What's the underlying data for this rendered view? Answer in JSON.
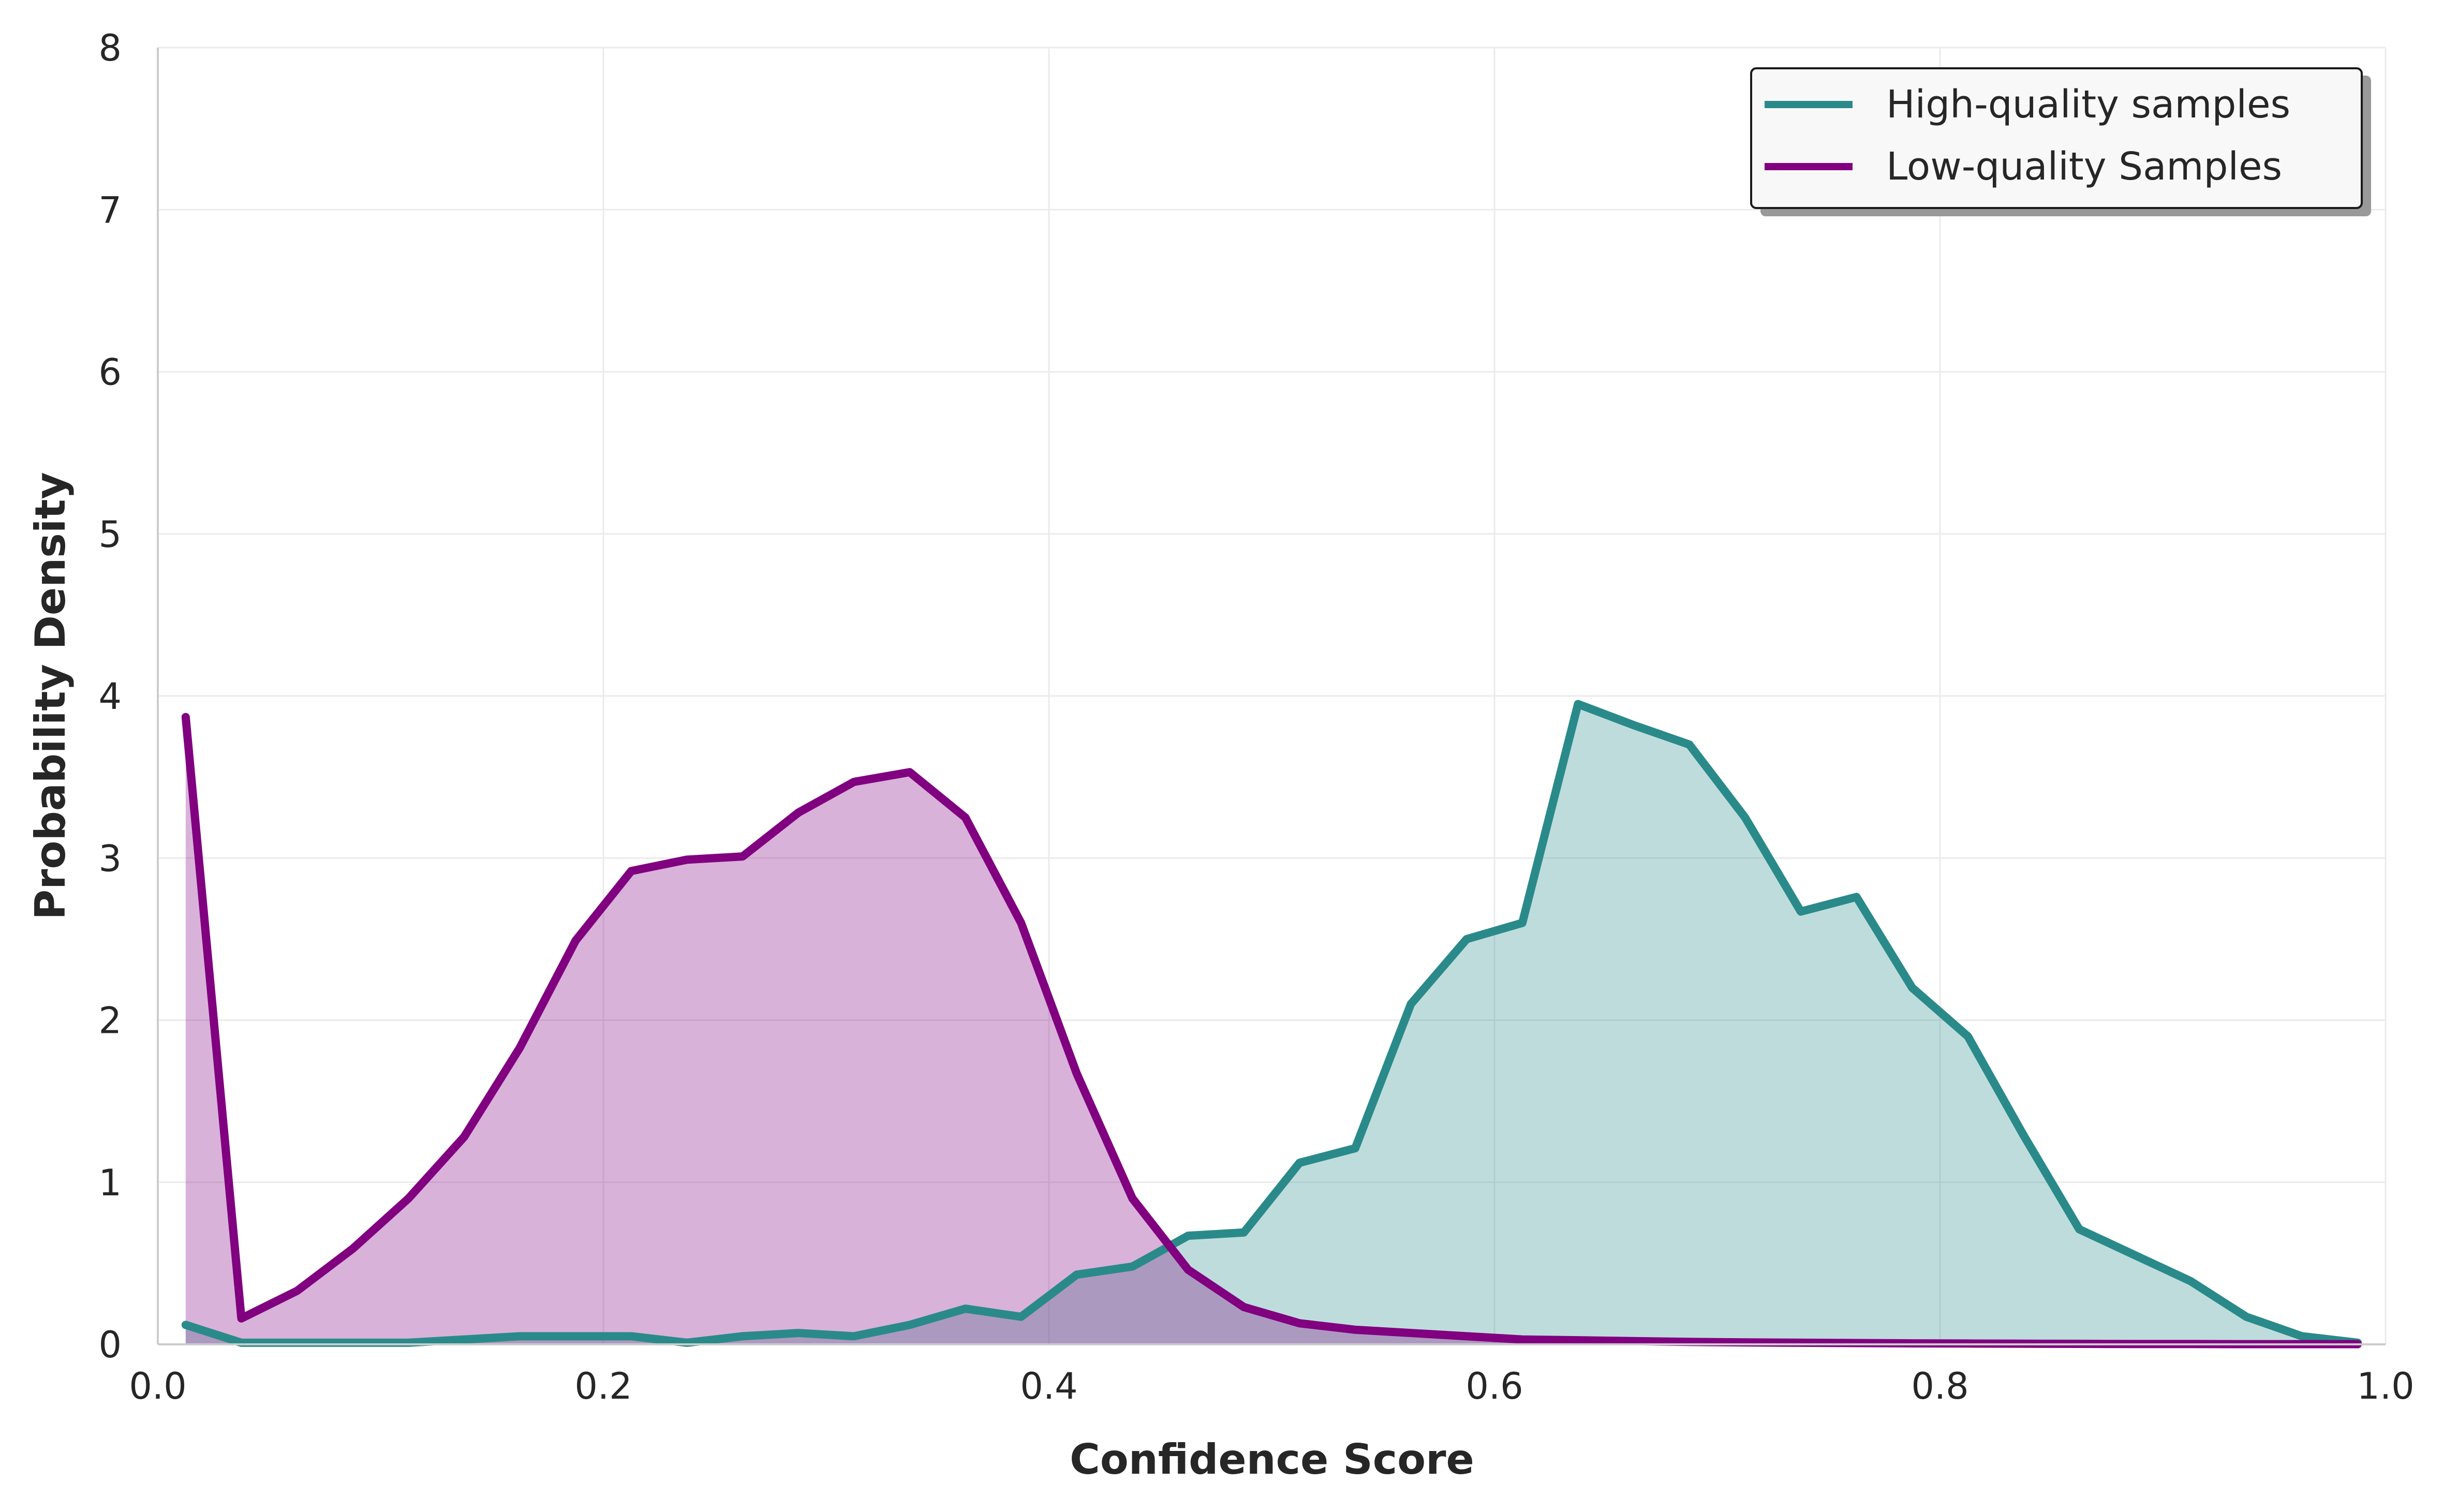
{
  "chart_data": {
    "type": "area",
    "title": "",
    "xlabel": "Confidence Score",
    "ylabel": "Probability Density",
    "xlim": [
      0.0,
      1.0
    ],
    "ylim": [
      0,
      8
    ],
    "x_ticks": [
      "0.0",
      "0.2",
      "0.4",
      "0.6",
      "0.8",
      "1.0"
    ],
    "y_ticks": [
      "0",
      "1",
      "2",
      "3",
      "4",
      "5",
      "6",
      "7",
      "8"
    ],
    "grid": true,
    "legend_position": "top-right",
    "x": [
      0.0125,
      0.0375,
      0.0625,
      0.0875,
      0.1125,
      0.1375,
      0.1625,
      0.1875,
      0.2125,
      0.2375,
      0.2625,
      0.2875,
      0.3125,
      0.3375,
      0.3625,
      0.3875,
      0.4125,
      0.4375,
      0.4625,
      0.4875,
      0.5125,
      0.5375,
      0.5625,
      0.5875,
      0.6125,
      0.6375,
      0.6625,
      0.6875,
      0.7125,
      0.7375,
      0.7625,
      0.7875,
      0.8125,
      0.8375,
      0.8625,
      0.8875,
      0.9125,
      0.9375,
      0.9625,
      0.9875
    ],
    "series": [
      {
        "name": "High-quality samples",
        "color": "#2a8a8a",
        "fill": "#bfdede",
        "values": [
          0.12,
          0.01,
          0.01,
          0.01,
          0.01,
          0.03,
          0.05,
          0.05,
          0.05,
          0.01,
          0.05,
          0.07,
          0.05,
          0.12,
          0.22,
          0.17,
          0.43,
          0.48,
          0.67,
          0.69,
          1.12,
          1.21,
          2.1,
          2.5,
          2.6,
          3.95,
          3.82,
          3.7,
          3.25,
          2.67,
          2.76,
          2.2,
          1.9,
          1.29,
          0.71,
          0.55,
          0.39,
          0.17,
          0.05,
          0.01
        ]
      },
      {
        "name": "Low-quality Samples",
        "color": "#800080",
        "fill": "#d8b0d4",
        "values": [
          3.87,
          0.16,
          0.33,
          0.59,
          0.9,
          1.28,
          1.83,
          2.49,
          2.92,
          2.99,
          3.01,
          3.28,
          3.47,
          3.53,
          3.25,
          2.6,
          1.67,
          0.9,
          0.46,
          0.23,
          0.13,
          0.09,
          0.07,
          0.05,
          0.03,
          0.025,
          0.02,
          0.015,
          0.012,
          0.01,
          0.008,
          0.006,
          0.005,
          0.004,
          0.003,
          0.002,
          0.002,
          0.001,
          0.001,
          0.001
        ]
      }
    ]
  }
}
